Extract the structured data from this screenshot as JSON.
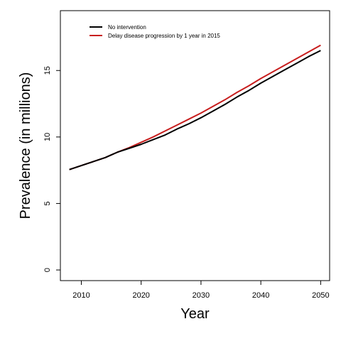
{
  "chart_data": {
    "type": "line",
    "title": "",
    "xlabel": "Year",
    "ylabel": "Prevalence (in millions)",
    "xlim": [
      2006.5,
      2051.5
    ],
    "ylim": [
      -0.8,
      19.5
    ],
    "x_ticks": [
      2010,
      2020,
      2030,
      2040,
      2050
    ],
    "y_ticks": [
      0,
      5,
      10,
      15
    ],
    "grid": false,
    "legend_position": "top-left",
    "x": [
      2008,
      2010,
      2012,
      2014,
      2015,
      2016,
      2018,
      2020,
      2022,
      2024,
      2026,
      2028,
      2030,
      2032,
      2034,
      2036,
      2038,
      2040,
      2042,
      2044,
      2046,
      2048,
      2050
    ],
    "series": [
      {
        "name": "No intervention",
        "color": "#000000",
        "values": [
          7.55,
          7.85,
          8.15,
          8.45,
          8.65,
          8.85,
          9.15,
          9.45,
          9.8,
          10.15,
          10.6,
          11.0,
          11.45,
          11.95,
          12.45,
          13.0,
          13.5,
          14.05,
          14.55,
          15.05,
          15.55,
          16.05,
          16.5
        ]
      },
      {
        "name": "Delay disease progression by 1 year in 2015",
        "color": "#c81e1e",
        "values": [
          7.55,
          7.85,
          8.15,
          8.45,
          8.65,
          8.85,
          9.2,
          9.6,
          10.0,
          10.45,
          10.9,
          11.35,
          11.8,
          12.3,
          12.8,
          13.35,
          13.85,
          14.4,
          14.9,
          15.4,
          15.9,
          16.4,
          16.9
        ]
      }
    ]
  }
}
